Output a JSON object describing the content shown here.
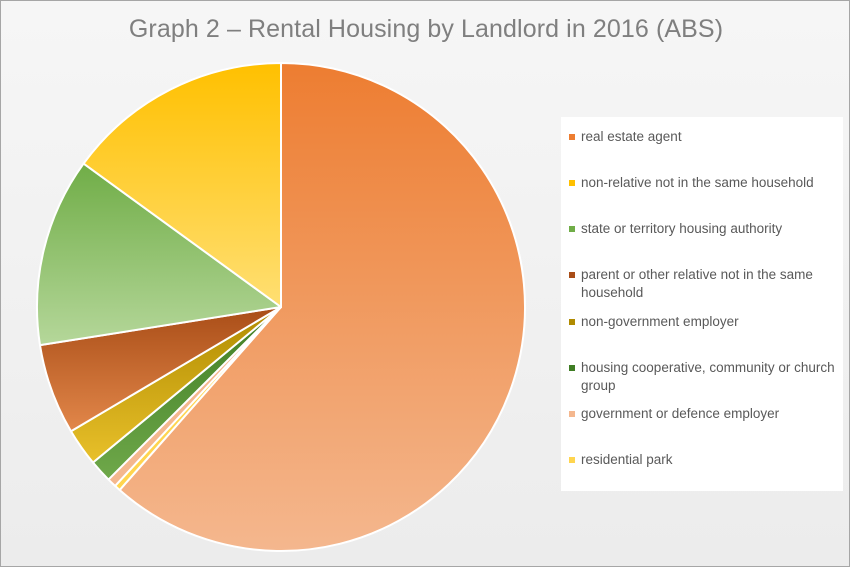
{
  "chart_data": {
    "type": "pie",
    "title": "Graph 2 – Rental Housing by Landlord in 2016 (ABS)",
    "legend_position": "right",
    "slices": [
      {
        "label": "real estate agent",
        "value": 61.5,
        "color_light": "#f4b78e",
        "color_dark": "#ed7d31"
      },
      {
        "label": "non-relative not in the same household",
        "value": 15.0,
        "color_light": "#ffdf73",
        "color_dark": "#ffc000"
      },
      {
        "label": "state or territory housing authority",
        "value": 12.5,
        "color_light": "#b5d79a",
        "color_dark": "#70ad47"
      },
      {
        "label": "parent or other relative not in the same household",
        "value": 6.0,
        "color_light": "#e2874a",
        "color_dark": "#a94d17"
      },
      {
        "label": "non-government employer",
        "value": 2.5,
        "color_light": "#e8c02a",
        "color_dark": "#b08b00"
      },
      {
        "label": "housing cooperative, community or church group",
        "value": 1.5,
        "color_light": "#6fa84a",
        "color_dark": "#3f7d24"
      },
      {
        "label": "government or defence employer",
        "value": 0.6,
        "color_light": "#f4b78e",
        "color_dark": "#f4b78e"
      },
      {
        "label": "residential park",
        "value": 0.4,
        "color_light": "#ffd54f",
        "color_dark": "#ffd54f"
      }
    ]
  }
}
